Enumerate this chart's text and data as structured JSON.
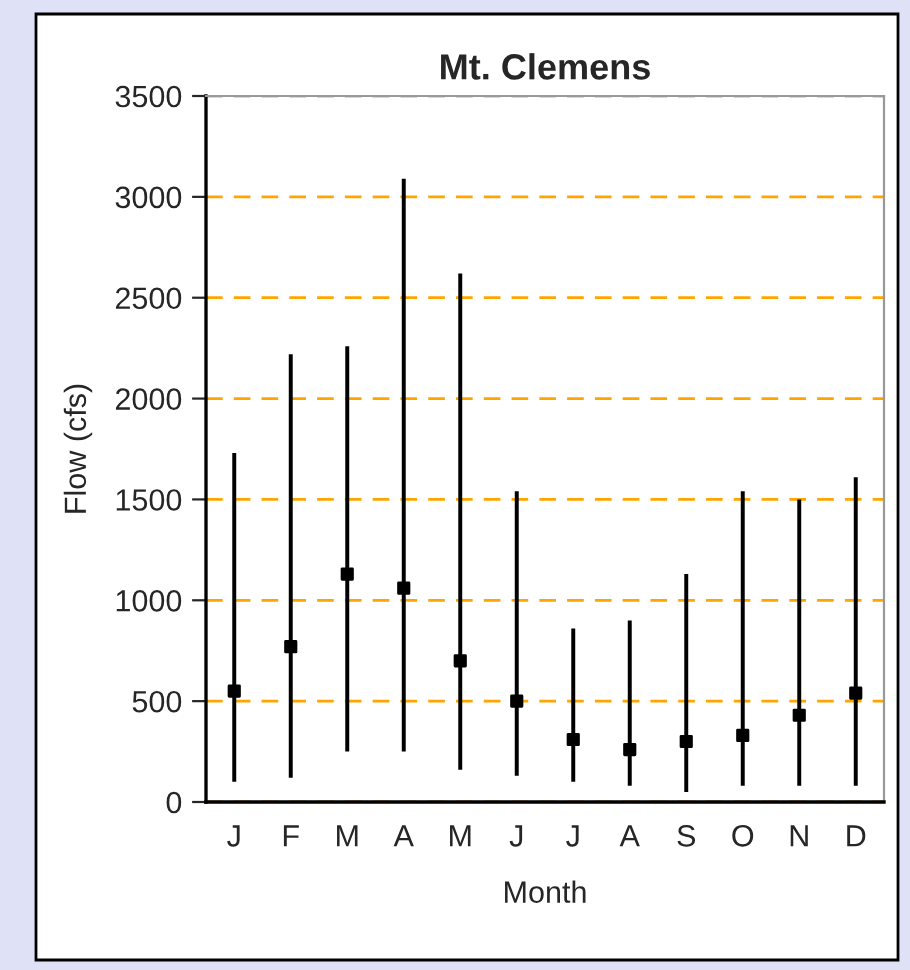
{
  "chart_data": {
    "type": "bar",
    "title": "Mt. Clemens",
    "xlabel": "Month",
    "ylabel": "Flow (cfs)",
    "categories": [
      "J",
      "F",
      "M",
      "A",
      "M",
      "J",
      "J",
      "A",
      "S",
      "O",
      "N",
      "D"
    ],
    "series": [
      {
        "color": "#000000",
        "base": [
          100,
          120,
          250,
          250,
          160,
          130,
          100,
          80,
          50,
          80,
          80,
          80
        ],
        "values": [
          1630,
          2100,
          2010,
          2840,
          2460,
          1410,
          760,
          820,
          1080,
          1460,
          1420,
          1530
        ]
      },
      {
        "type": "scatter",
        "color": "#000000",
        "marker": "square",
        "values": [
          550,
          770,
          1130,
          1060,
          700,
          500,
          310,
          260,
          300,
          330,
          430,
          540
        ]
      }
    ],
    "ylim": [
      0,
      3500
    ],
    "yticks": [
      0,
      500,
      1000,
      1500,
      2000,
      2500,
      3000,
      3500
    ],
    "grid": "y"
  }
}
